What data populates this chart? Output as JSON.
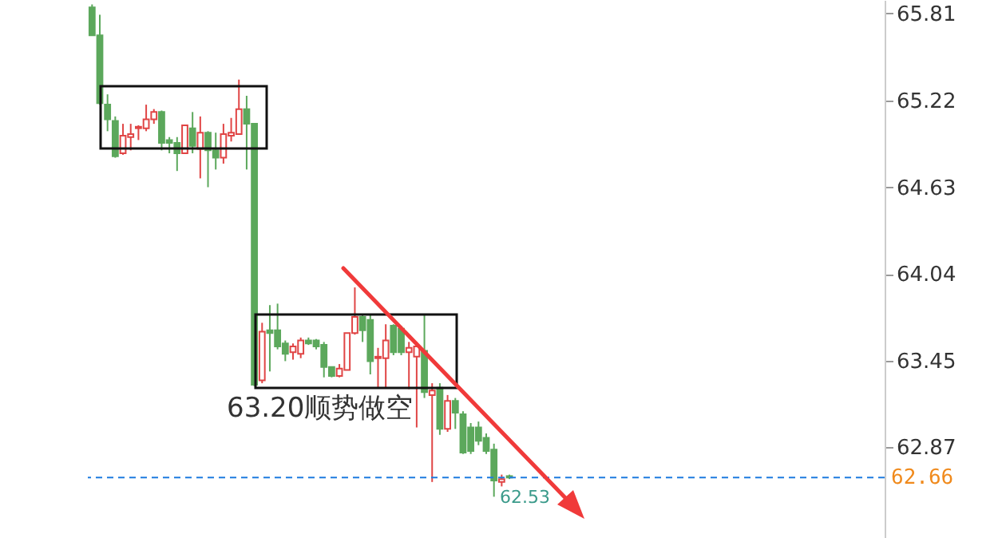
{
  "chart_data": {
    "type": "candlestick",
    "categories": [
      null,
      null,
      null,
      null,
      null,
      null,
      null,
      null,
      null,
      null,
      null,
      null,
      null,
      null,
      null,
      null,
      null,
      null,
      null,
      null,
      null,
      null,
      null,
      null,
      null,
      null,
      null,
      null,
      null,
      null,
      null,
      null,
      null,
      null,
      null,
      null,
      null,
      null,
      null,
      null,
      null,
      null,
      null,
      null,
      null,
      null,
      null,
      null,
      null,
      null,
      null,
      null,
      null,
      null,
      null,
      null,
      null,
      null,
      null,
      null,
      null,
      null,
      null,
      null,
      null,
      null,
      null,
      null,
      null,
      null,
      null,
      null,
      null,
      null,
      null,
      null,
      null,
      null,
      null,
      null,
      null,
      null,
      null,
      null,
      null,
      null,
      null,
      null,
      null,
      null,
      null,
      null,
      null,
      null,
      null,
      null,
      null,
      null,
      null,
      null,
      null,
      null,
      null
    ],
    "ohlc": [
      [
        65.85,
        65.87,
        65.66,
        65.66
      ],
      [
        65.66,
        65.8,
        65.19,
        65.2
      ],
      [
        65.19,
        65.26,
        65.01,
        65.09
      ],
      [
        65.08,
        65.11,
        64.83,
        64.84
      ],
      [
        64.86,
        65.06,
        64.85,
        64.98
      ],
      [
        64.97,
        65.06,
        64.88,
        64.99
      ],
      [
        65.03,
        65.05,
        64.95,
        65.04
      ],
      [
        65.03,
        65.19,
        65.01,
        65.09
      ],
      [
        65.09,
        65.16,
        65.06,
        65.14
      ],
      [
        65.14,
        65.15,
        64.88,
        64.93
      ],
      [
        64.95,
        64.97,
        64.86,
        64.93
      ],
      [
        64.93,
        64.97,
        64.74,
        64.86
      ],
      [
        64.86,
        65.05,
        64.86,
        65.05
      ],
      [
        65.03,
        65.14,
        64.86,
        64.91
      ],
      [
        64.89,
        65.11,
        64.69,
        65.0
      ],
      [
        65.0,
        65.01,
        64.63,
        64.88
      ],
      [
        64.88,
        65.0,
        64.75,
        64.83
      ],
      [
        64.83,
        65.06,
        64.79,
        64.99
      ],
      [
        64.98,
        65.1,
        64.94,
        65.0
      ],
      [
        64.99,
        65.36,
        64.99,
        65.16
      ],
      [
        65.16,
        65.25,
        64.75,
        65.06
      ],
      [
        65.06,
        65.06,
        63.28,
        63.29
      ],
      [
        63.32,
        63.71,
        63.3,
        63.65
      ],
      [
        63.66,
        63.83,
        63.38,
        63.64
      ],
      [
        63.66,
        63.84,
        63.53,
        63.55
      ],
      [
        63.57,
        63.59,
        63.45,
        63.5
      ],
      [
        63.51,
        63.57,
        63.46,
        63.55
      ],
      [
        63.5,
        63.61,
        63.47,
        63.59
      ],
      [
        63.59,
        63.61,
        63.56,
        63.57
      ],
      [
        63.59,
        63.6,
        63.53,
        63.55
      ],
      [
        63.56,
        63.58,
        63.34,
        63.41
      ],
      [
        63.41,
        63.41,
        63.34,
        63.35
      ],
      [
        63.35,
        63.43,
        63.34,
        63.4
      ],
      [
        63.39,
        63.64,
        63.39,
        63.64
      ],
      [
        63.64,
        63.95,
        63.63,
        63.75
      ],
      [
        63.75,
        63.77,
        63.58,
        63.66
      ],
      [
        63.73,
        63.77,
        63.36,
        63.45
      ],
      [
        63.47,
        63.54,
        63.27,
        63.48
      ],
      [
        63.47,
        63.7,
        63.27,
        63.59
      ],
      [
        63.69,
        63.7,
        63.49,
        63.51
      ],
      [
        63.67,
        63.69,
        63.49,
        63.51
      ],
      [
        63.51,
        63.58,
        63.26,
        63.54
      ],
      [
        63.48,
        63.58,
        63.0,
        63.55
      ],
      [
        63.52,
        63.77,
        63.2,
        63.24
      ],
      [
        63.22,
        63.3,
        62.63,
        63.25
      ],
      [
        63.27,
        63.3,
        62.95,
        62.99
      ],
      [
        62.99,
        63.22,
        62.97,
        63.18
      ],
      [
        63.18,
        63.2,
        62.99,
        63.1
      ],
      [
        63.09,
        63.11,
        62.82,
        62.83
      ],
      [
        63.0,
        63.03,
        62.82,
        62.84
      ],
      [
        63.0,
        63.04,
        62.88,
        62.91
      ],
      [
        62.93,
        62.96,
        62.82,
        62.84
      ],
      [
        62.85,
        62.89,
        62.53,
        62.64
      ],
      [
        62.63,
        62.68,
        62.6,
        62.65
      ],
      [
        62.67,
        62.68,
        62.65,
        62.66
      ],
      null,
      null,
      null,
      null,
      null,
      null,
      null,
      null,
      null,
      null,
      null,
      null,
      null,
      null,
      null,
      null,
      null,
      null,
      null,
      null,
      null,
      null,
      null,
      null,
      null,
      null,
      null,
      null,
      null,
      null,
      null,
      null,
      null,
      null,
      null,
      null,
      null,
      null,
      null,
      null,
      null,
      null,
      null,
      null,
      null,
      null,
      null,
      null
    ],
    "colors": [
      "#5ca85c",
      "#5ca85c",
      "#5ca85c",
      "#5ca85c",
      "#e04545",
      "#e04545",
      "#e04545",
      "#e04545",
      "#e04545",
      "#5ca85c",
      "#5ca85c",
      "#5ca85c",
      "#e04545",
      "#5ca85c",
      "#e04545",
      "#5ca85c",
      "#5ca85c",
      "#e04545",
      "#e04545",
      "#e04545",
      "#5ca85c",
      "#5ca85c",
      "#e04545",
      "#5ca85c",
      "#5ca85c",
      "#5ca85c",
      "#e04545",
      "#e04545",
      "#5ca85c",
      "#5ca85c",
      "#5ca85c",
      "#5ca85c",
      "#e04545",
      "#e04545",
      "#e04545",
      "#5ca85c",
      "#5ca85c",
      "#e04545",
      "#e04545",
      "#5ca85c",
      "#5ca85c",
      "#e04545",
      "#e04545",
      "#5ca85c",
      "#e04545",
      "#5ca85c",
      "#e04545",
      "#5ca85c",
      "#5ca85c",
      "#5ca85c",
      "#5ca85c",
      "#5ca85c",
      "#5ca85c",
      "#e04545",
      "#5ca85c",
      null,
      null,
      null,
      null,
      null,
      null,
      null,
      null,
      null,
      null,
      null,
      null,
      null,
      null,
      null,
      null,
      null,
      null,
      null,
      null,
      null,
      null,
      null,
      null,
      null,
      null,
      null,
      null,
      null,
      null,
      null,
      null,
      null,
      null,
      null,
      null,
      null,
      null,
      null,
      null,
      null,
      null,
      null,
      null,
      null,
      null,
      null,
      null
    ],
    "ylim": [
      62.25,
      65.9
    ],
    "yticks": [
      62.87,
      63.45,
      64.04,
      64.63,
      65.22,
      65.81
    ],
    "tick_labels": "y",
    "ref_lines": [
      {
        "axis": "y",
        "value": 62.66,
        "label": "62.66",
        "color": "#1e7be0",
        "line_style": "dashed"
      }
    ],
    "annotations": [
      "63.20顺势做空",
      "62.53"
    ]
  }
}
